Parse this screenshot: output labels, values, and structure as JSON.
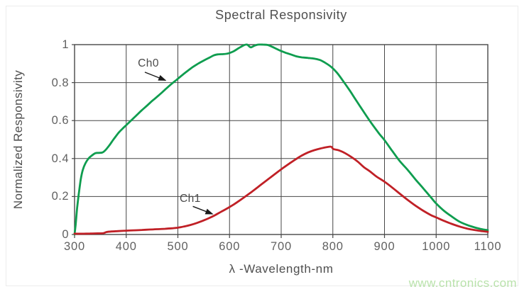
{
  "chart_data": {
    "type": "line",
    "title": "Spectral Responsivity",
    "xlabel": "λ -Wavelength-nm",
    "ylabel": "Normalized Responsivity",
    "xlim": [
      300,
      1100
    ],
    "ylim": [
      0,
      1
    ],
    "x_ticks": [
      300,
      400,
      500,
      600,
      700,
      800,
      900,
      1000,
      1100
    ],
    "y_ticks": [
      0,
      0.2,
      0.4,
      0.6,
      0.8,
      1
    ],
    "y_tick_labels": [
      "0",
      "0.2",
      "0.4",
      "0.6",
      "0.8",
      "1"
    ],
    "grid": true,
    "legend_position": "inline-annotations",
    "series": [
      {
        "name": "Ch0",
        "color": "#0f9d4f",
        "points": [
          [
            300,
            0
          ],
          [
            302,
            0.05
          ],
          [
            305,
            0.14
          ],
          [
            308,
            0.21
          ],
          [
            312,
            0.29
          ],
          [
            316,
            0.34
          ],
          [
            321,
            0.375
          ],
          [
            327,
            0.4
          ],
          [
            333,
            0.415
          ],
          [
            340,
            0.428
          ],
          [
            347,
            0.43
          ],
          [
            354,
            0.432
          ],
          [
            360,
            0.445
          ],
          [
            368,
            0.472
          ],
          [
            376,
            0.503
          ],
          [
            385,
            0.535
          ],
          [
            393,
            0.558
          ],
          [
            400,
            0.576
          ],
          [
            410,
            0.602
          ],
          [
            420,
            0.628
          ],
          [
            430,
            0.654
          ],
          [
            440,
            0.678
          ],
          [
            450,
            0.703
          ],
          [
            460,
            0.726
          ],
          [
            470,
            0.75
          ],
          [
            480,
            0.775
          ],
          [
            490,
            0.798
          ],
          [
            500,
            0.82
          ],
          [
            510,
            0.843
          ],
          [
            520,
            0.864
          ],
          [
            530,
            0.884
          ],
          [
            540,
            0.901
          ],
          [
            550,
            0.916
          ],
          [
            560,
            0.93
          ],
          [
            570,
            0.944
          ],
          [
            578,
            0.949
          ],
          [
            588,
            0.95
          ],
          [
            598,
            0.954
          ],
          [
            608,
            0.965
          ],
          [
            618,
            0.982
          ],
          [
            628,
            0.997
          ],
          [
            634,
            1.0
          ],
          [
            641,
            0.986
          ],
          [
            648,
            0.994
          ],
          [
            655,
            1.0
          ],
          [
            665,
            1.0
          ],
          [
            674,
            0.998
          ],
          [
            683,
            0.988
          ],
          [
            692,
            0.976
          ],
          [
            700,
            0.966
          ],
          [
            710,
            0.956
          ],
          [
            720,
            0.947
          ],
          [
            730,
            0.938
          ],
          [
            740,
            0.933
          ],
          [
            752,
            0.93
          ],
          [
            764,
            0.926
          ],
          [
            775,
            0.919
          ],
          [
            786,
            0.903
          ],
          [
            797,
            0.882
          ],
          [
            808,
            0.852
          ],
          [
            820,
            0.808
          ],
          [
            833,
            0.757
          ],
          [
            846,
            0.703
          ],
          [
            860,
            0.645
          ],
          [
            875,
            0.585
          ],
          [
            890,
            0.53
          ],
          [
            900,
            0.497
          ],
          [
            915,
            0.44
          ],
          [
            930,
            0.385
          ],
          [
            945,
            0.34
          ],
          [
            960,
            0.29
          ],
          [
            975,
            0.243
          ],
          [
            990,
            0.195
          ],
          [
            1000,
            0.163
          ],
          [
            1015,
            0.125
          ],
          [
            1030,
            0.095
          ],
          [
            1045,
            0.068
          ],
          [
            1060,
            0.05
          ],
          [
            1075,
            0.037
          ],
          [
            1090,
            0.027
          ],
          [
            1100,
            0.023
          ]
        ]
      },
      {
        "name": "Ch1",
        "color": "#c02026",
        "points": [
          [
            300,
            0.004
          ],
          [
            315,
            0.004
          ],
          [
            330,
            0.005
          ],
          [
            345,
            0.006
          ],
          [
            356,
            0.007
          ],
          [
            362,
            0.013
          ],
          [
            372,
            0.016
          ],
          [
            385,
            0.018
          ],
          [
            400,
            0.02
          ],
          [
            415,
            0.022
          ],
          [
            430,
            0.024
          ],
          [
            445,
            0.026
          ],
          [
            460,
            0.028
          ],
          [
            475,
            0.03
          ],
          [
            490,
            0.033
          ],
          [
            500,
            0.036
          ],
          [
            512,
            0.042
          ],
          [
            524,
            0.05
          ],
          [
            536,
            0.06
          ],
          [
            548,
            0.072
          ],
          [
            560,
            0.086
          ],
          [
            572,
            0.102
          ],
          [
            584,
            0.12
          ],
          [
            596,
            0.138
          ],
          [
            608,
            0.158
          ],
          [
            620,
            0.18
          ],
          [
            632,
            0.203
          ],
          [
            644,
            0.227
          ],
          [
            656,
            0.252
          ],
          [
            668,
            0.277
          ],
          [
            680,
            0.302
          ],
          [
            692,
            0.327
          ],
          [
            704,
            0.351
          ],
          [
            716,
            0.374
          ],
          [
            728,
            0.396
          ],
          [
            740,
            0.416
          ],
          [
            752,
            0.432
          ],
          [
            764,
            0.444
          ],
          [
            776,
            0.453
          ],
          [
            788,
            0.46
          ],
          [
            797,
            0.462
          ],
          [
            801,
            0.45
          ],
          [
            812,
            0.443
          ],
          [
            824,
            0.428
          ],
          [
            836,
            0.408
          ],
          [
            848,
            0.384
          ],
          [
            860,
            0.355
          ],
          [
            872,
            0.332
          ],
          [
            884,
            0.306
          ],
          [
            900,
            0.278
          ],
          [
            915,
            0.247
          ],
          [
            930,
            0.214
          ],
          [
            945,
            0.182
          ],
          [
            960,
            0.152
          ],
          [
            975,
            0.125
          ],
          [
            990,
            0.102
          ],
          [
            1000,
            0.09
          ],
          [
            1015,
            0.072
          ],
          [
            1030,
            0.056
          ],
          [
            1045,
            0.042
          ],
          [
            1060,
            0.031
          ],
          [
            1075,
            0.023
          ],
          [
            1090,
            0.017
          ],
          [
            1100,
            0.014
          ]
        ]
      }
    ],
    "annotations": [
      {
        "label": "Ch0",
        "text_at": [
          443,
          0.9
        ],
        "arrow_from": [
          436,
          0.855
        ],
        "arrow_to": [
          476,
          0.812
        ]
      },
      {
        "label": "Ch1",
        "text_at": [
          524,
          0.185
        ],
        "arrow_from": [
          529,
          0.148
        ],
        "arrow_to": [
          567,
          0.108
        ]
      }
    ]
  },
  "watermark": {
    "text": "www.cntronics.com",
    "color": "#b9e2ab"
  },
  "colors": {
    "grid": "#474747",
    "plot_border": "#474747",
    "axis_text": "#616161",
    "arrow": "#1a1a1a",
    "frame_border": "#ececec"
  }
}
